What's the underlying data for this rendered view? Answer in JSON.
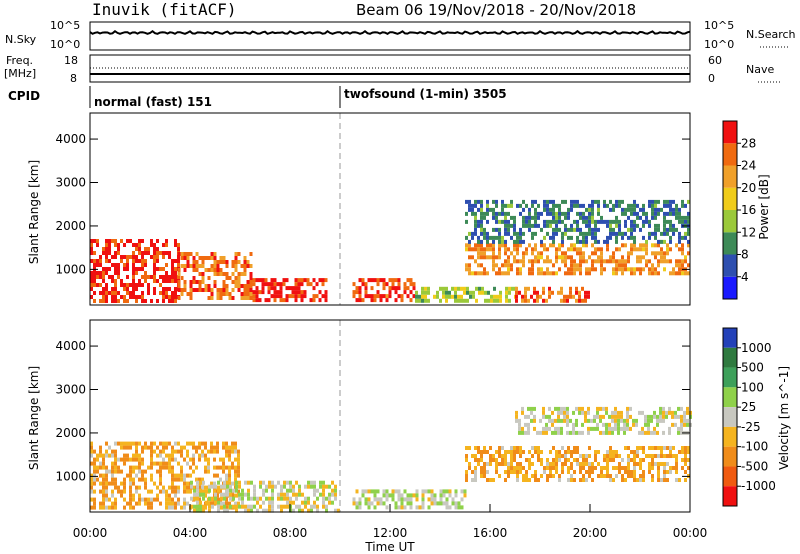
{
  "chart_data": [
    {
      "type": "line",
      "title": "Inuvik (fitACF)",
      "subtitle": "Beam 06  19/Nov/2018 - 20/Nov/2018",
      "panel": "N.Sky / N.Search",
      "left_label": "N.Sky",
      "right_label": "N.Search",
      "left_ticks": [
        "10^5",
        "10^0"
      ],
      "right_ticks": [
        "10^5",
        "10^0"
      ]
    },
    {
      "type": "line",
      "panel": "Freq. / Nave",
      "left_label": "Freq.",
      "left_unit": "[MHz]",
      "right_label": "Nave",
      "left_ticks": [
        "18",
        "8"
      ],
      "right_ticks": [
        "60",
        "0"
      ],
      "freq_mhz": 10.5,
      "nave": 22
    },
    {
      "type": "table",
      "panel": "CPID",
      "label": "CPID",
      "segments": [
        {
          "start_hour": 0,
          "end_hour": 10,
          "text": "normal (fast) 151"
        },
        {
          "start_hour": 10,
          "end_hour": 24,
          "text": "twofsound (1-min) 3505"
        }
      ]
    },
    {
      "type": "heatmap",
      "panel": "Power",
      "ylabel": "Slant Range [km]",
      "colorbar_label": "Power [dB]",
      "ylim": [
        180,
        4600
      ],
      "yticks": [
        1000,
        2000,
        3000,
        4000
      ],
      "colorbar_ticks": [
        "4",
        "8",
        "12",
        "16",
        "20",
        "24",
        "28"
      ],
      "colors": [
        "#1a1aff",
        "#2e4fb0",
        "#3d8a57",
        "#9bc93a",
        "#f0cc1a",
        "#f0a02a",
        "#f06a10",
        "#f01010"
      ],
      "regions": [
        {
          "x": [
            0,
            3.5
          ],
          "y": [
            250,
            1700
          ],
          "value": 28
        },
        {
          "x": [
            3.5,
            6.5
          ],
          "y": [
            300,
            1400
          ],
          "value": 24
        },
        {
          "x": [
            6.5,
            9.5
          ],
          "y": [
            250,
            800
          ],
          "value": 28
        },
        {
          "x": [
            10.5,
            13
          ],
          "y": [
            250,
            800
          ],
          "value": 26
        },
        {
          "x": [
            13,
            17
          ],
          "y": [
            250,
            600
          ],
          "value": 14
        },
        {
          "x": [
            17,
            20
          ],
          "y": [
            250,
            600
          ],
          "value": 24
        },
        {
          "x": [
            15,
            24
          ],
          "y": [
            900,
            1600
          ],
          "value": 22
        },
        {
          "x": [
            15,
            24
          ],
          "y": [
            1600,
            2600
          ],
          "value": 8
        }
      ]
    },
    {
      "type": "heatmap",
      "panel": "Velocity",
      "ylabel": "Slant Range [km]",
      "colorbar_label": "Velocity [m s^-1]",
      "xlabel": "Time UT",
      "ylim": [
        180,
        4600
      ],
      "yticks": [
        1000,
        2000,
        3000,
        4000
      ],
      "xticks": [
        "00:00",
        "04:00",
        "08:00",
        "12:00",
        "16:00",
        "20:00",
        "00:00"
      ],
      "colorbar_ticks": [
        "1000",
        "500",
        "100",
        "25",
        "-25",
        "-100",
        "-500",
        "-1000"
      ],
      "colors": [
        "#2341b8",
        "#2f7a3f",
        "#3da05a",
        "#8fd14a",
        "#c8c8c0",
        "#f5b41f",
        "#f08c1a",
        "#f05a10",
        "#f01010"
      ],
      "regions": [
        {
          "x": [
            0,
            6
          ],
          "y": [
            250,
            1800
          ],
          "value": -300
        },
        {
          "x": [
            4,
            10
          ],
          "y": [
            250,
            900
          ],
          "value": 0
        },
        {
          "x": [
            10.5,
            15
          ],
          "y": [
            250,
            700
          ],
          "value": 50
        },
        {
          "x": [
            15,
            24
          ],
          "y": [
            900,
            1700
          ],
          "value": -300
        },
        {
          "x": [
            17,
            24
          ],
          "y": [
            2000,
            2600
          ],
          "value": 0
        }
      ]
    }
  ]
}
